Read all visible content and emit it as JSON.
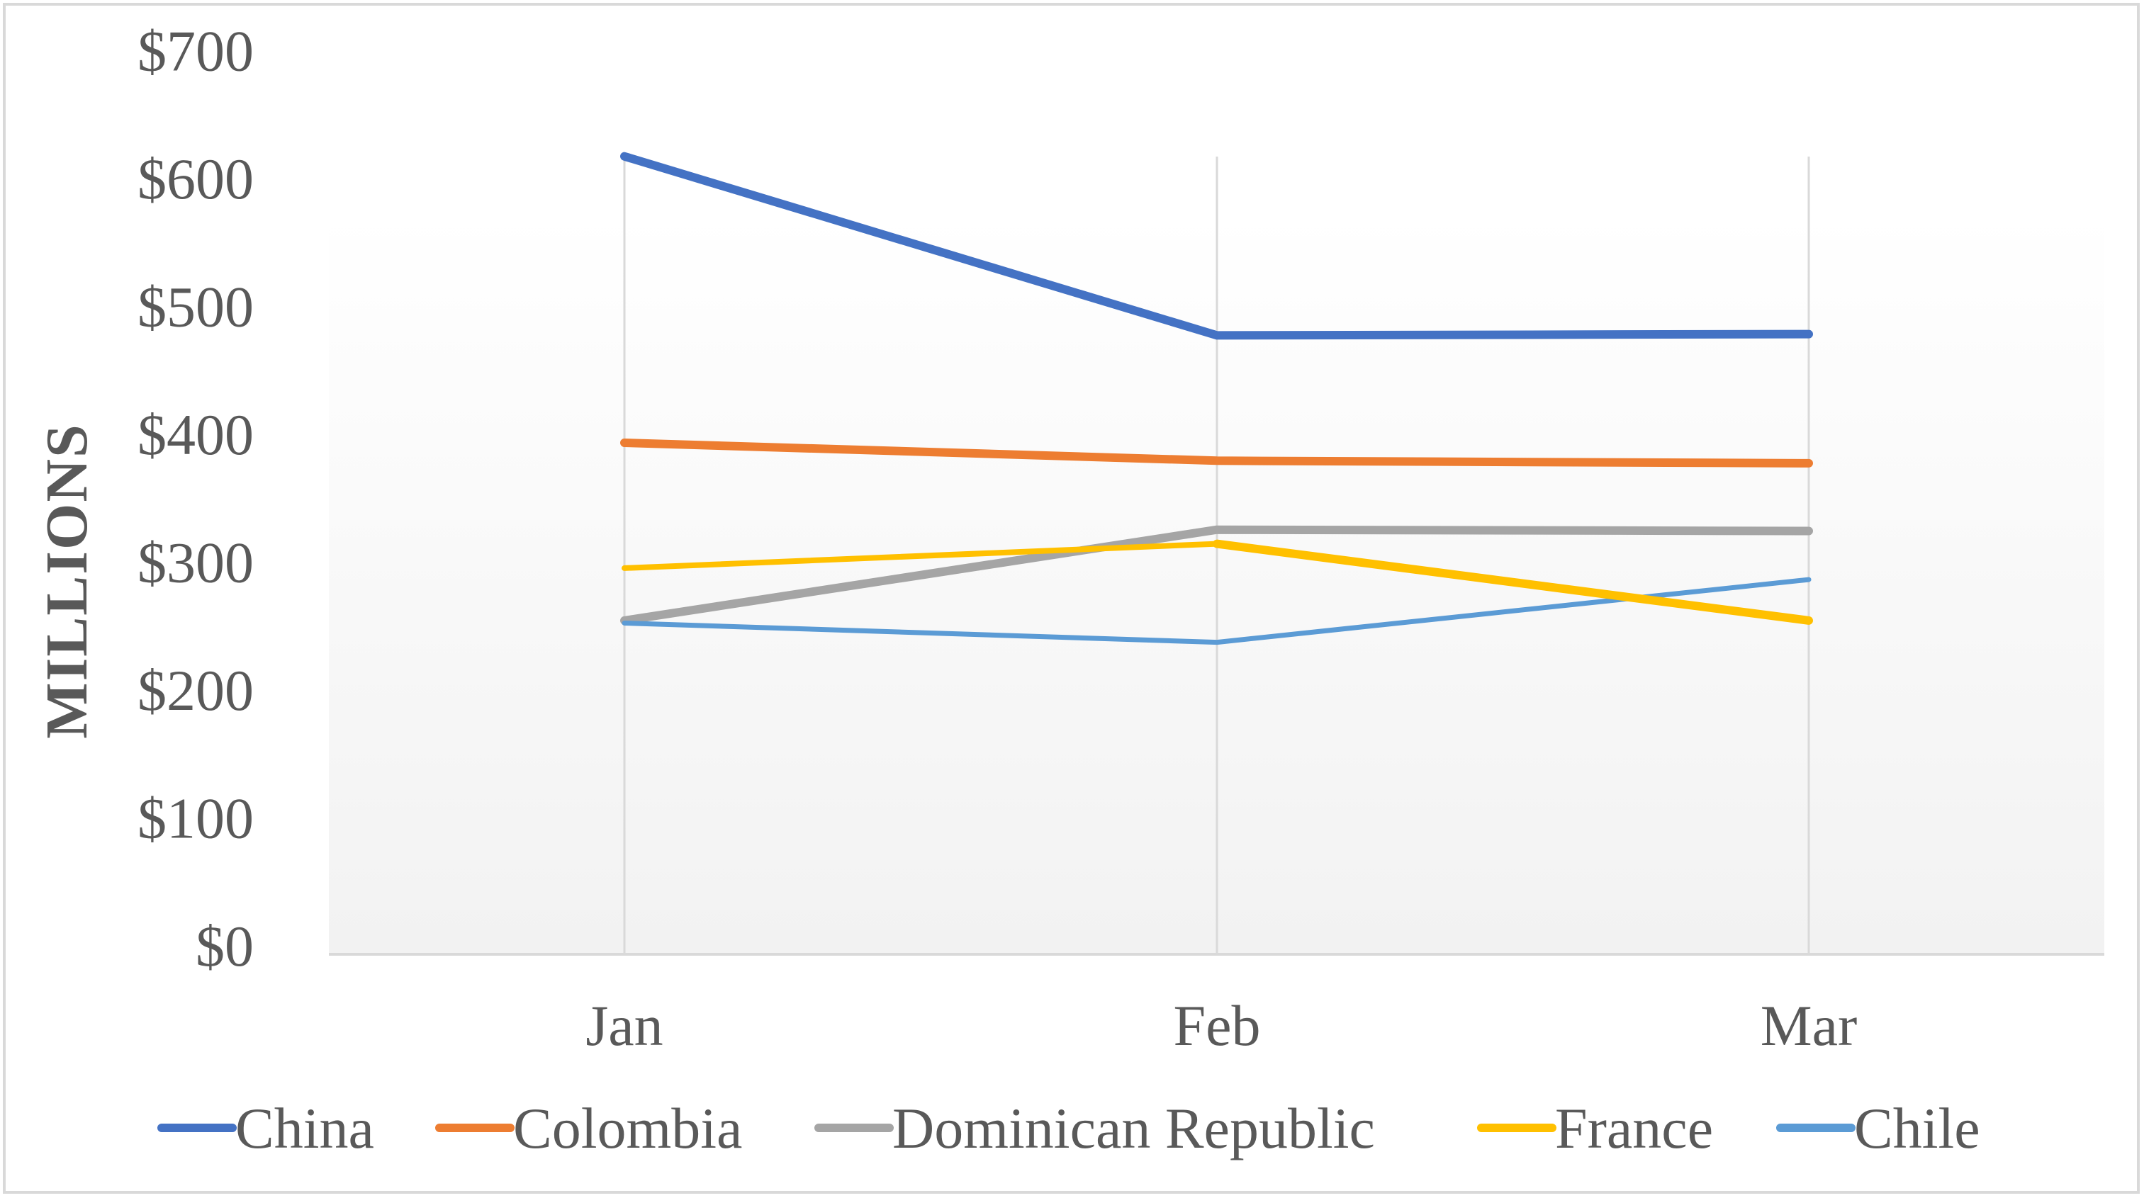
{
  "chart_data": {
    "type": "line",
    "title": "",
    "xlabel": "",
    "ylabel": "MILLIONS",
    "categories": [
      "Jan",
      "Feb",
      "Mar"
    ],
    "y_ticks": [
      "$0",
      "$100",
      "$200",
      "$300",
      "$400",
      "$500",
      "$600",
      "$700"
    ],
    "ylim": [
      0,
      700
    ],
    "grid": {
      "vertical": true,
      "horizontal": false
    },
    "legend_position": "bottom",
    "series": [
      {
        "name": "China",
        "color": "#4472C4",
        "values": [
          624,
          484,
          485
        ]
      },
      {
        "name": "Colombia",
        "color": "#ED7D31",
        "values": [
          400,
          386,
          384
        ]
      },
      {
        "name": "Dominican Republic",
        "color": "#A5A5A5",
        "values": [
          261,
          332,
          331
        ]
      },
      {
        "name": "France",
        "color": "#FFC000",
        "values": [
          302,
          321,
          261
        ]
      },
      {
        "name": "Chile",
        "color": "#5B9BD5",
        "values": [
          259,
          244,
          293
        ]
      }
    ]
  }
}
